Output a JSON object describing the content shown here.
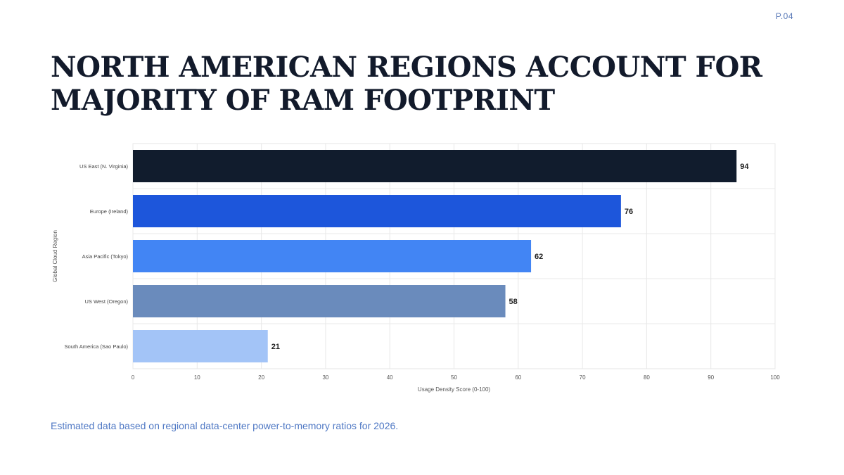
{
  "page": {
    "number": "P.04",
    "title": "NORTH AMERICAN REGIONS ACCOUNT FOR MAJORITY OF RAM FOOTPRINT",
    "footnote": "Estimated data based on regional data-center power-to-memory ratios for 2026."
  },
  "chart_data": {
    "type": "bar",
    "orientation": "horizontal",
    "categories": [
      "US East (N. Virginia)",
      "Europe (Ireland)",
      "Asia Pacific (Tokyo)",
      "US West (Oregon)",
      "South America (Sao Paulo)"
    ],
    "values": [
      94,
      76,
      62,
      58,
      21
    ],
    "bar_colors": [
      "#111c2d",
      "#1d56db",
      "#4285f4",
      "#6a8bbc",
      "#a3c4f7"
    ],
    "data_labels": [
      "94",
      "76",
      "62",
      "58",
      "21"
    ],
    "xlabel": "Usage Density Score (0-100)",
    "ylabel": "Global Cloud Region",
    "xlim": [
      0,
      100
    ],
    "x_ticks": [
      0,
      10,
      20,
      30,
      40,
      50,
      60,
      70,
      80,
      90,
      100
    ],
    "grid": true,
    "legend": "none"
  }
}
